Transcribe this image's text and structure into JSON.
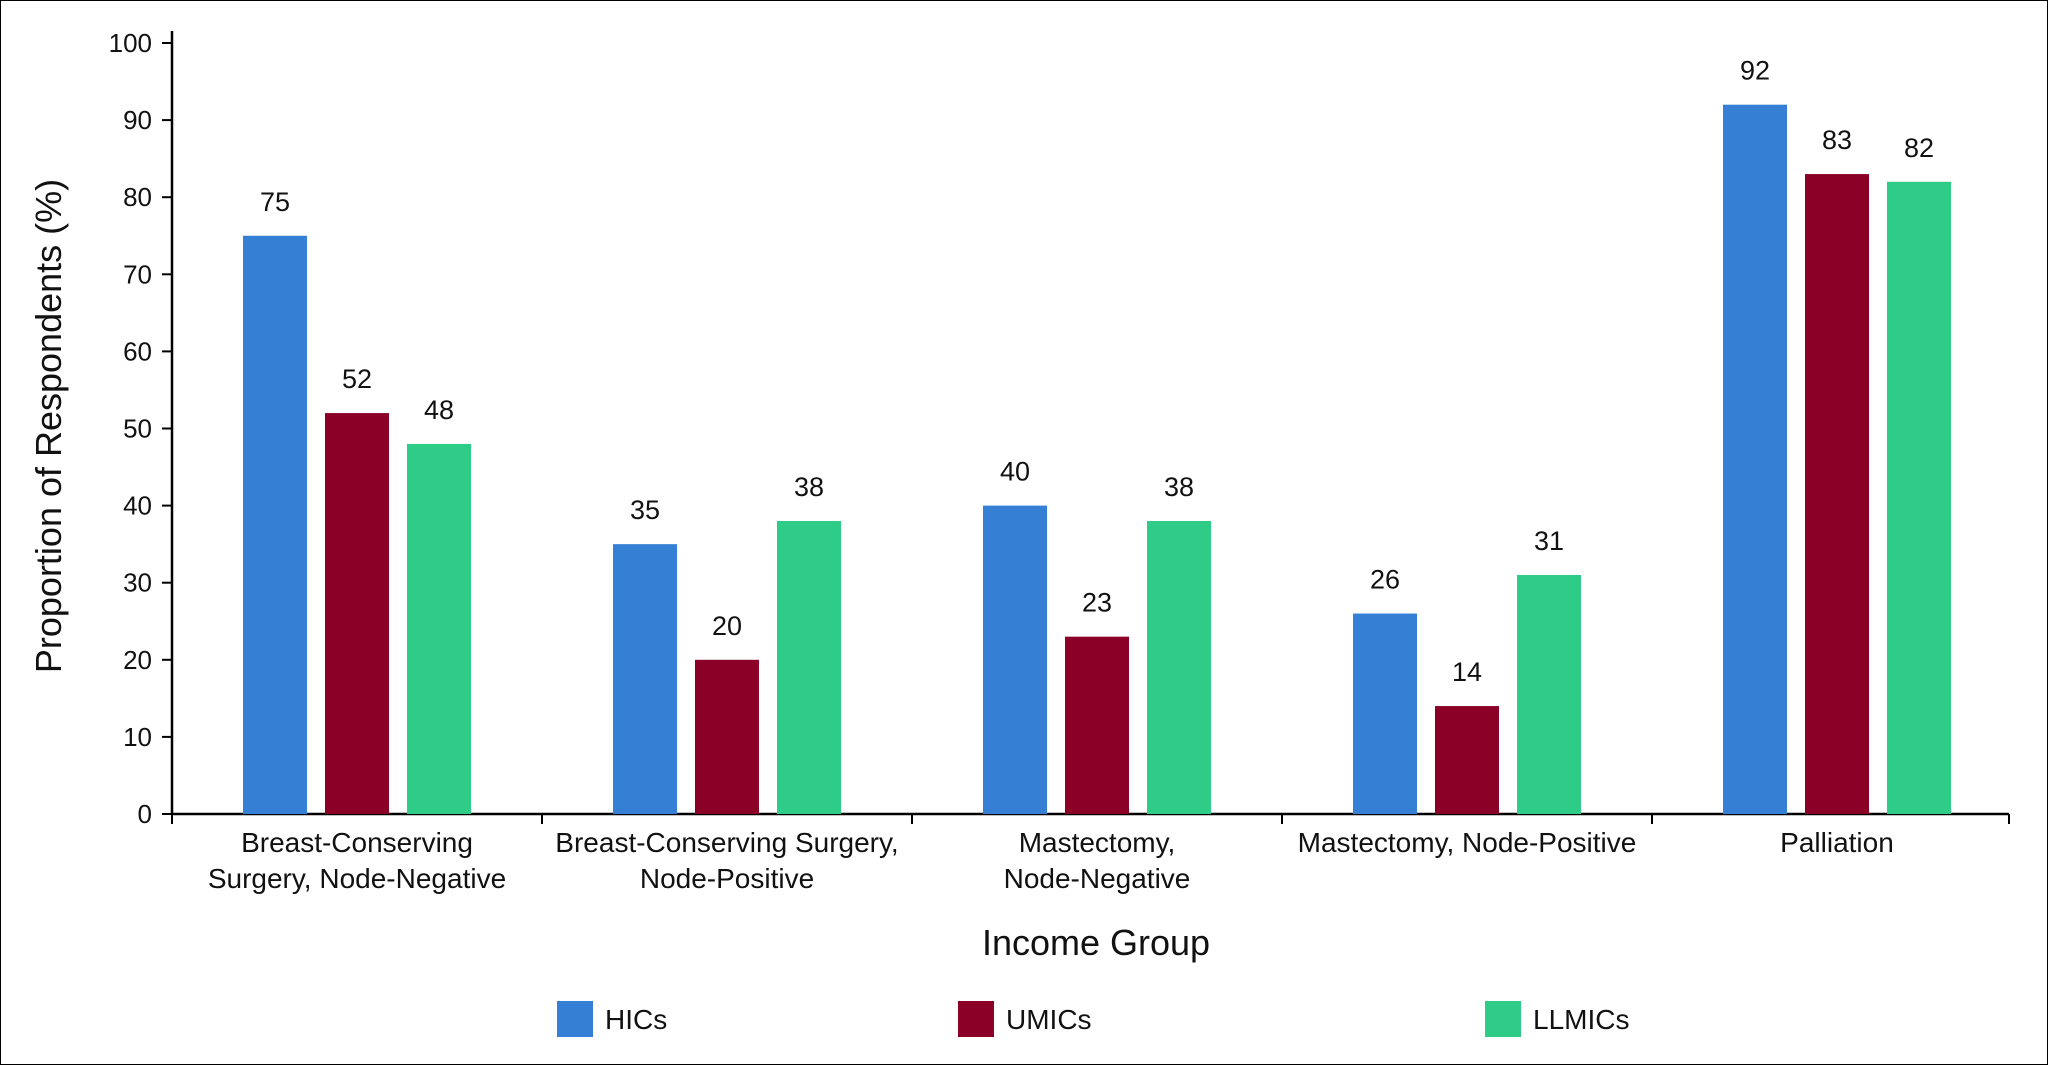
{
  "chart_data": {
    "type": "bar",
    "title": "",
    "xlabel": "Income Group",
    "ylabel": "Proportion of Respondents (%)",
    "ylim": [
      0,
      100
    ],
    "yticks": [
      0,
      10,
      20,
      30,
      40,
      50,
      60,
      70,
      80,
      90,
      100
    ],
    "grid": false,
    "legend_position": "bottom",
    "categories": [
      [
        "Breast-Conserving",
        "Surgery, Node-Negative"
      ],
      [
        "Breast-Conserving Surgery,",
        "Node-Positive"
      ],
      [
        "Mastectomy,",
        "Node-Negative"
      ],
      [
        "Mastectomy, Node-Positive"
      ],
      [
        "Palliation"
      ]
    ],
    "series": [
      {
        "name": "HICs",
        "color": "#3580d4",
        "values": [
          75,
          35,
          40,
          26,
          92
        ]
      },
      {
        "name": "UMICs",
        "color": "#8b0026",
        "values": [
          52,
          20,
          23,
          14,
          83
        ]
      },
      {
        "name": "LLMICs",
        "color": "#2ecc86",
        "values": [
          48,
          38,
          38,
          31,
          82
        ]
      }
    ]
  }
}
